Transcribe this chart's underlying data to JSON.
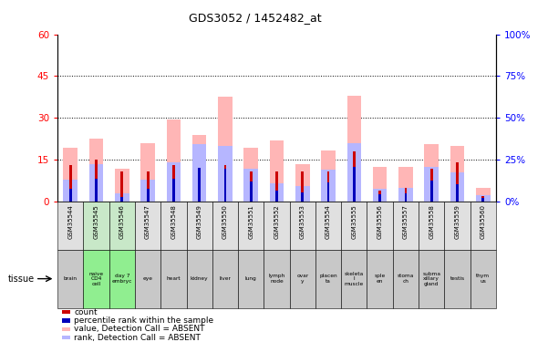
{
  "title": "GDS3052 / 1452482_at",
  "samples": [
    "GSM35544",
    "GSM35545",
    "GSM35546",
    "GSM35547",
    "GSM35548",
    "GSM35549",
    "GSM35550",
    "GSM35551",
    "GSM35552",
    "GSM35553",
    "GSM35554",
    "GSM35555",
    "GSM35556",
    "GSM35557",
    "GSM35558",
    "GSM35559",
    "GSM35560"
  ],
  "tissues": [
    "brain",
    "naive\nCD4\ncell",
    "day 7\nembryc",
    "eye",
    "heart",
    "kidney",
    "liver",
    "lung",
    "lymph\nnode",
    "ovar\ny",
    "placen\nta",
    "skeleta\nl\nmuscle",
    "sple\nen",
    "stoma\nch",
    "subma\nxillary\ngland",
    "testis",
    "thym\nus"
  ],
  "tissue_green": [
    false,
    true,
    true,
    false,
    false,
    false,
    false,
    false,
    false,
    false,
    false,
    false,
    false,
    false,
    false,
    false,
    false
  ],
  "value_absent": [
    19.5,
    22.5,
    12.0,
    21.0,
    29.5,
    24.0,
    37.5,
    19.5,
    22.0,
    13.5,
    18.5,
    38.0,
    12.5,
    12.5,
    20.5,
    20.0,
    5.0
  ],
  "rank_absent": [
    8.0,
    13.5,
    3.0,
    8.0,
    14.0,
    20.5,
    20.0,
    12.0,
    6.5,
    5.5,
    11.5,
    21.0,
    4.5,
    5.0,
    12.5,
    10.5,
    2.5
  ],
  "count": [
    13.0,
    15.0,
    11.0,
    11.0,
    13.0,
    12.0,
    13.0,
    11.0,
    11.0,
    11.0,
    11.0,
    18.0,
    4.0,
    5.0,
    12.0,
    14.0,
    2.0
  ],
  "percentile": [
    8.0,
    13.5,
    3.0,
    8.0,
    14.0,
    20.5,
    20.0,
    12.0,
    6.5,
    5.5,
    11.5,
    21.0,
    4.5,
    5.0,
    12.5,
    10.5,
    2.5
  ],
  "ylim_left": [
    0,
    60
  ],
  "ylim_right": [
    0,
    100
  ],
  "yticks_left": [
    0,
    15,
    30,
    45,
    60
  ],
  "yticks_right": [
    0,
    25,
    50,
    75,
    100
  ],
  "ytick_labels_left": [
    "0",
    "15",
    "30",
    "45",
    "60"
  ],
  "ytick_labels_right": [
    "0%",
    "25%",
    "50%",
    "75%",
    "100%"
  ],
  "color_value_absent": "#FFB6B6",
  "color_rank_absent": "#B6B6FF",
  "color_count": "#CC0000",
  "color_percentile": "#0000BB",
  "bg_tissue_normal": "#C8C8C8",
  "bg_tissue_green": "#90EE90",
  "bg_sample_normal": "#E0E0E0",
  "bg_sample_green": "#C8E8C8"
}
